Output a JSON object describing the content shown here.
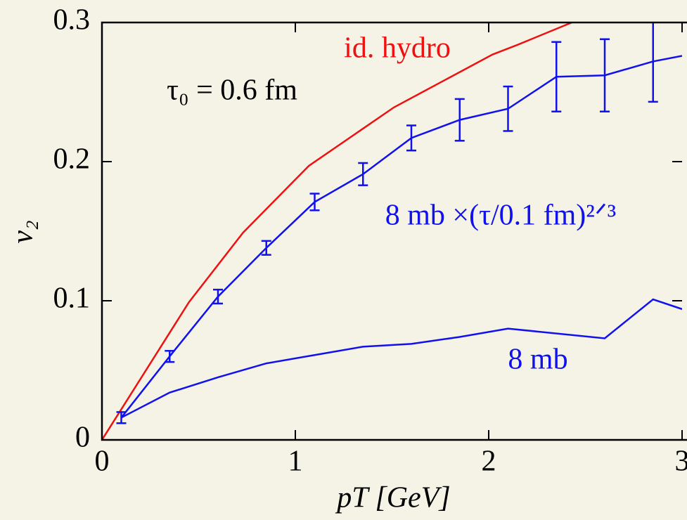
{
  "chart_data": {
    "type": "line",
    "xlabel": "pT [GeV]",
    "ylabel": "v₂",
    "xlim": [
      0,
      3
    ],
    "ylim": [
      0,
      0.3
    ],
    "xticks": [
      0,
      1,
      2,
      3
    ],
    "yticks": [
      0,
      0.1,
      0.2,
      0.3
    ],
    "annotations": [
      "id. hydro",
      "τ₀ = 0.6 fm",
      "8 mb ×(τ/0.1 fm)²ᐟ³",
      "8 mb"
    ],
    "series": [
      {
        "color": "#ee1111",
        "x": [
          0,
          0.45,
          0.73,
          1.07,
          1.51,
          2.02,
          2.15,
          2.43
        ],
        "values": [
          0,
          0.099,
          0.149,
          0.197,
          0.239,
          0.277,
          0.284,
          0.3
        ]
      },
      {
        "color": "#1111ee",
        "x": [
          0.1,
          0.35,
          0.6,
          0.85,
          1.1,
          1.35,
          1.6,
          1.85,
          2.1,
          2.35,
          2.6,
          2.85,
          3.0
        ],
        "values": [
          0.016,
          0.06,
          0.103,
          0.138,
          0.171,
          0.191,
          0.217,
          0.23,
          0.238,
          0.261,
          0.262,
          0.272,
          0.276
        ],
        "errors": [
          0.004,
          0.004,
          0.005,
          0.005,
          0.006,
          0.008,
          0.009,
          0.015,
          0.016,
          0.025,
          0.026,
          0.029,
          null
        ]
      },
      {
        "color": "#1111ee",
        "x": [
          0.1,
          0.35,
          0.6,
          0.85,
          1.1,
          1.35,
          1.6,
          1.85,
          2.1,
          2.6,
          2.85,
          3.0
        ],
        "values": [
          0.016,
          0.034,
          0.045,
          0.055,
          0.061,
          0.067,
          0.069,
          0.074,
          0.08,
          0.073,
          0.101,
          0.094
        ]
      }
    ]
  }
}
